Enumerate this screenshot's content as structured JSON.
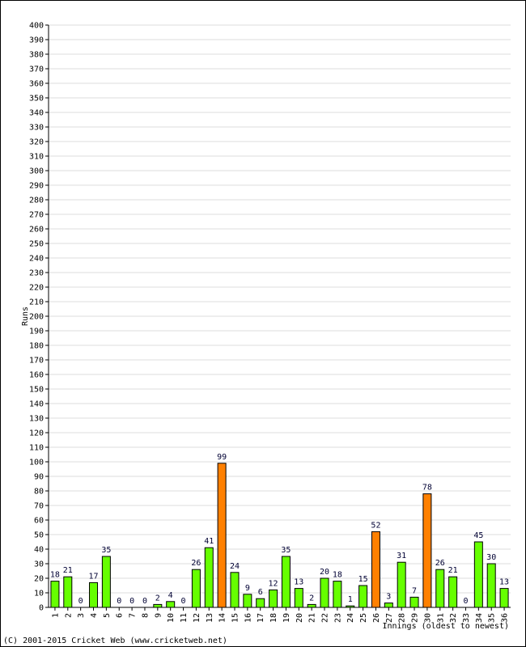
{
  "chart_data": {
    "type": "bar",
    "ylabel": "Runs",
    "xlabel": "Innings (oldest to newest)",
    "ylim": [
      0,
      400
    ],
    "ytick_step": 10,
    "grid": true,
    "categories": [
      "1",
      "2",
      "3",
      "4",
      "5",
      "6",
      "7",
      "8",
      "9",
      "10",
      "11",
      "12",
      "13",
      "14",
      "15",
      "16",
      "17",
      "18",
      "19",
      "20",
      "21",
      "22",
      "23",
      "24",
      "25",
      "26",
      "27",
      "28",
      "29",
      "30",
      "31",
      "32",
      "33",
      "34",
      "35",
      "36"
    ],
    "values": [
      18,
      21,
      0,
      17,
      35,
      0,
      0,
      0,
      2,
      4,
      0,
      26,
      41,
      99,
      24,
      9,
      6,
      12,
      35,
      13,
      2,
      20,
      18,
      1,
      15,
      52,
      3,
      31,
      7,
      78,
      26,
      21,
      0,
      45,
      30,
      13
    ],
    "highlight": [
      false,
      false,
      false,
      false,
      false,
      false,
      false,
      false,
      false,
      false,
      false,
      false,
      false,
      true,
      false,
      false,
      false,
      false,
      false,
      false,
      false,
      false,
      false,
      false,
      false,
      true,
      false,
      false,
      false,
      true,
      false,
      false,
      false,
      false,
      false,
      false
    ],
    "colors": {
      "normal": "#66ff00",
      "highlight": "#ff8000",
      "grid": "#dddddd",
      "bar_stroke": "#000000"
    }
  },
  "footer": {
    "copyright": "(C) 2001-2015 Cricket Web (www.cricketweb.net)"
  }
}
